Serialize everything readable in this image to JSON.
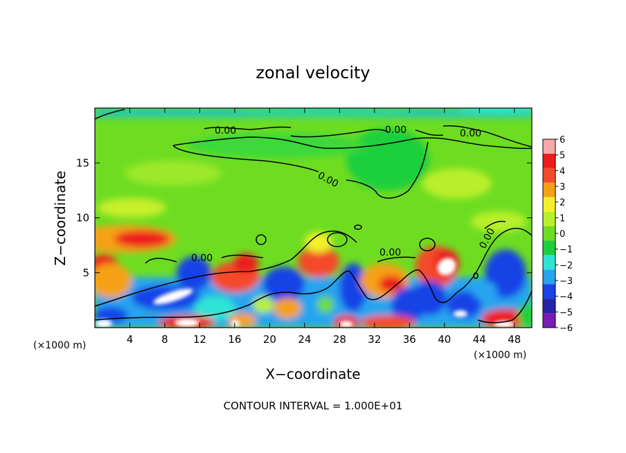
{
  "chart_data": {
    "type": "heatmap",
    "title": "zonal velocity",
    "xlabel": "X−coordinate",
    "ylabel": "Z−coordinate",
    "x_unit_left": "(×1000 m)",
    "x_unit_right": "(×1000 m)",
    "xlim": [
      0,
      50
    ],
    "ylim": [
      0,
      20
    ],
    "xticks": [
      4,
      8,
      12,
      16,
      20,
      24,
      28,
      32,
      36,
      40,
      44,
      48
    ],
    "yticks": [
      5,
      10,
      15
    ],
    "colorbar_levels": [
      "6",
      "5",
      "4",
      "3",
      "2",
      "1",
      "0",
      "−1",
      "−2",
      "−3",
      "−4",
      "−5",
      "−6"
    ],
    "colorbar_colors": [
      "#f7a8a8",
      "#ee1c1c",
      "#f44a2a",
      "#f5a114",
      "#f3f02a",
      "#b9ef2a",
      "#6edd21",
      "#1ecf3c",
      "#2ee4d4",
      "#27a4ee",
      "#1943e6",
      "#2424a8",
      "#7a1bb6"
    ],
    "contour_label": "0.00",
    "contour_interval_text": "CONTOUR INTERVAL = 1.000E+01"
  }
}
